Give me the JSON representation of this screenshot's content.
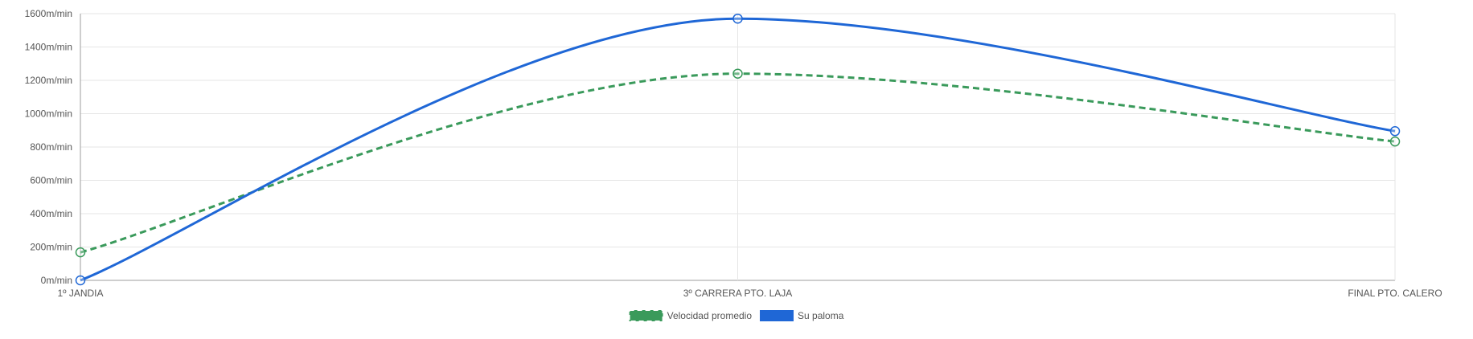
{
  "chart_data": {
    "type": "line",
    "categories": [
      "1º JANDIA",
      "3º CARRERA PTO. LAJA",
      "FINAL PTO. CALERO"
    ],
    "series": [
      {
        "name": "Velocidad promedio",
        "values": [
          168,
          1240,
          833
        ],
        "color": "#3a9a5b",
        "dashed": true
      },
      {
        "name": "Su paloma",
        "values": [
          0,
          1570,
          895
        ],
        "color": "#1f67d6",
        "dashed": false
      }
    ],
    "y_ticks": [
      0,
      200,
      400,
      600,
      800,
      1000,
      1200,
      1400,
      1600
    ],
    "y_unit": "m/min",
    "ylim": [
      0,
      1600
    ],
    "grid": true,
    "smooth": true,
    "legend_position": "bottom-center"
  }
}
